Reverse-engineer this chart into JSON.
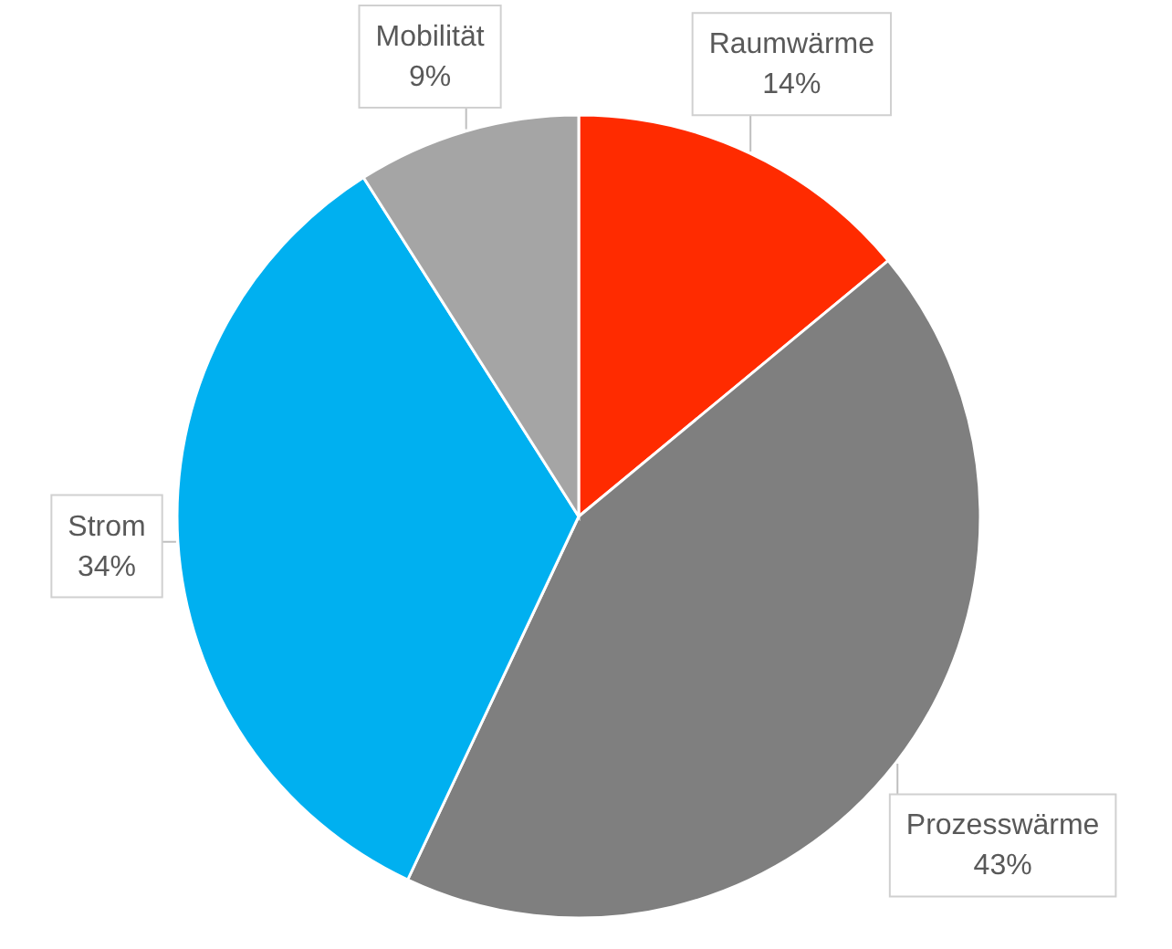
{
  "chart_data": {
    "type": "pie",
    "categories": [
      "Raumwärme",
      "Prozesswärme",
      "Strom",
      "Mobilität"
    ],
    "values": [
      14,
      43,
      34,
      9
    ],
    "colors": [
      "#ff2b00",
      "#7f7f7f",
      "#00b0f0",
      "#a5a5a5"
    ],
    "value_labels": [
      "14%",
      "43%",
      "34%",
      "9%"
    ]
  }
}
